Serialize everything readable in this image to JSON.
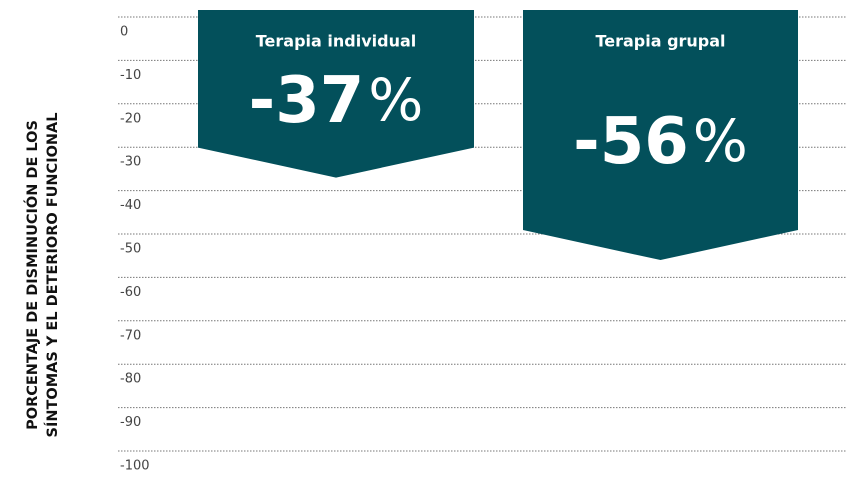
{
  "chart_data": {
    "type": "bar",
    "y_label": [
      "PORCENTAJE DE DISMINUCIÓN DE LOS",
      "SÍNTOMAS Y EL DETERIORO FUNCIONAL"
    ],
    "categories": [
      "Terapia individual",
      "Terapia grupal"
    ],
    "values": [
      -37,
      -56
    ],
    "value_labels": [
      "-37%",
      "-56%"
    ],
    "color": "#03505b",
    "ylim": [
      -100,
      0
    ],
    "yticks": [
      0,
      -10,
      -20,
      -30,
      -40,
      -50,
      -60,
      -70,
      -80,
      -90,
      -100
    ],
    "grid": true
  }
}
